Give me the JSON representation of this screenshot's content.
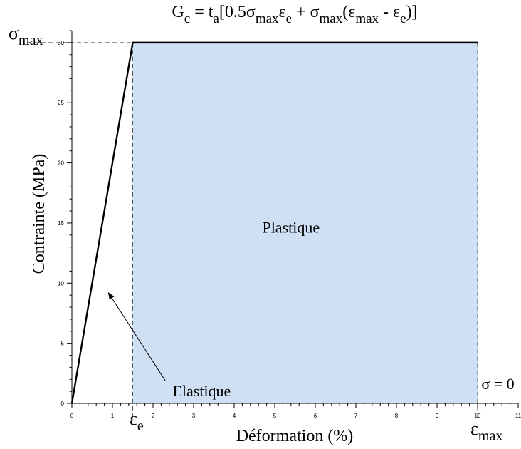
{
  "chart_data": {
    "type": "line",
    "title": {
      "parts": [
        {
          "t": "G",
          "s": "n"
        },
        {
          "t": "c",
          "s": "sub"
        },
        {
          "t": " = t",
          "s": "n"
        },
        {
          "t": "a",
          "s": "sub"
        },
        {
          "t": "[0.5σ",
          "s": "n"
        },
        {
          "t": "max",
          "s": "sub"
        },
        {
          "t": "ε",
          "s": "n"
        },
        {
          "t": "e",
          "s": "sub"
        },
        {
          "t": " + σ",
          "s": "n"
        },
        {
          "t": "max",
          "s": "sub"
        },
        {
          "t": "(ε",
          "s": "n"
        },
        {
          "t": "max",
          "s": "sub"
        },
        {
          "t": " - ε",
          "s": "n"
        },
        {
          "t": "e",
          "s": "sub"
        },
        {
          "t": ")]",
          "s": "n"
        }
      ]
    },
    "xlabel": "Déformation (%)",
    "ylabel": "Contrainte (MPa)",
    "xlim": [
      0,
      11
    ],
    "ylim": [
      0,
      31
    ],
    "x_ticks": [
      0,
      1,
      2,
      3,
      4,
      5,
      6,
      7,
      8,
      9,
      10,
      11
    ],
    "y_ticks": [
      0,
      5,
      10,
      15,
      20,
      25,
      30
    ],
    "grid": false,
    "series": [
      {
        "x": [
          0,
          1.5,
          10
        ],
        "y": [
          0,
          30,
          30
        ],
        "color": "#000000"
      }
    ],
    "shaded_region": {
      "x": [
        1.5,
        10
      ],
      "y": [
        0,
        30
      ],
      "color": "#cfe0f5"
    },
    "reference_lines": {
      "epsilon_e": 1.5,
      "epsilon_max": 10,
      "sigma_max": 30
    },
    "annotations": [
      {
        "text": "Plastique",
        "x": 5.4,
        "y": 14.2
      },
      {
        "text": "Elastique",
        "x": 3.2,
        "y": 0.6
      },
      {
        "text": "σ = 0",
        "x": 10.5,
        "y": 1.2
      }
    ],
    "arrow": {
      "from": [
        2.3,
        1.9
      ],
      "to": [
        0.9,
        9.2
      ]
    },
    "symbol_labels": {
      "sigma_max": [
        {
          "t": "σ",
          "s": "n"
        },
        {
          "t": "max",
          "s": "sub"
        }
      ],
      "epsilon_e": [
        {
          "t": "ε",
          "s": "n"
        },
        {
          "t": "e",
          "s": "sub"
        }
      ],
      "epsilon_max": [
        {
          "t": "ε",
          "s": "n"
        },
        {
          "t": "max",
          "s": "sub"
        }
      ]
    }
  }
}
